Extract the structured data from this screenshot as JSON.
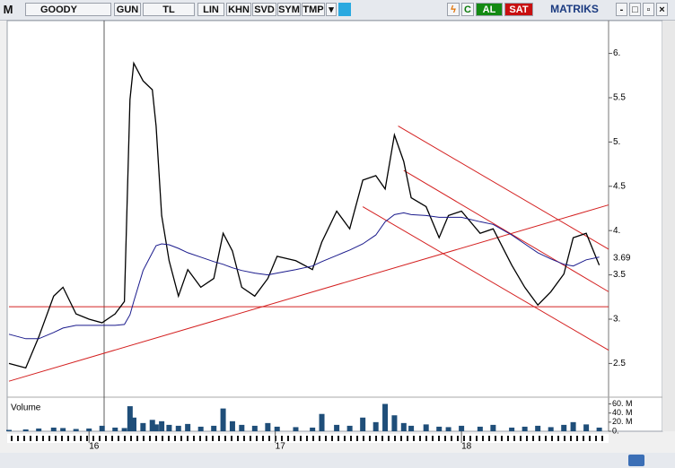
{
  "toolbar": {
    "logo": "M",
    "symbol": "GOODY",
    "buttons": [
      "GUN",
      "TL",
      "LIN",
      "KHN",
      "SVD",
      "SYM",
      "TMP"
    ],
    "c": "C",
    "buy": "AL",
    "sell": "SAT",
    "brand": "MATRIKS"
  },
  "chart_data": [
    {
      "type": "line",
      "x": [
        2015.57,
        2015.66,
        2015.73,
        2015.81,
        2015.86,
        2015.93,
        2016.0,
        2016.07,
        2016.14,
        2016.19,
        2016.22,
        2016.24,
        2016.29,
        2016.34,
        2016.36,
        2016.39,
        2016.43,
        2016.48,
        2016.53,
        2016.6,
        2016.67,
        2016.72,
        2016.77,
        2016.82,
        2016.89,
        2016.96,
        2017.01,
        2017.11,
        2017.2,
        2017.25,
        2017.33,
        2017.4,
        2017.47,
        2017.54,
        2017.59,
        2017.64,
        2017.69,
        2017.73,
        2017.81,
        2017.88,
        2017.93,
        2018.0,
        2018.1,
        2018.17,
        2018.27,
        2018.34,
        2018.41,
        2018.48,
        2018.55,
        2018.6,
        2018.67,
        2018.74
      ],
      "series": [
        {
          "color": "#000000",
          "values": [
            2.5,
            2.45,
            2.8,
            3.26,
            3.36,
            3.06,
            3.0,
            2.96,
            3.06,
            3.2,
            5.48,
            5.89,
            5.69,
            5.59,
            5.18,
            4.17,
            3.66,
            3.26,
            3.56,
            3.36,
            3.46,
            3.97,
            3.77,
            3.36,
            3.26,
            3.46,
            3.71,
            3.66,
            3.56,
            3.87,
            4.22,
            4.02,
            4.57,
            4.62,
            4.47,
            5.08,
            4.78,
            4.37,
            4.27,
            3.92,
            4.17,
            4.22,
            3.97,
            4.02,
            3.61,
            3.36,
            3.16,
            3.31,
            3.51,
            3.92,
            3.97,
            3.61
          ]
        },
        {
          "color": "#1a1a8c",
          "values": [
            2.83,
            2.78,
            2.78,
            2.85,
            2.9,
            2.93,
            2.93,
            2.93,
            2.93,
            2.94,
            3.05,
            3.2,
            3.55,
            3.75,
            3.83,
            3.85,
            3.84,
            3.8,
            3.75,
            3.7,
            3.65,
            3.62,
            3.58,
            3.55,
            3.52,
            3.5,
            3.52,
            3.56,
            3.6,
            3.65,
            3.72,
            3.78,
            3.85,
            3.95,
            4.1,
            4.18,
            4.2,
            4.18,
            4.17,
            4.15,
            4.15,
            4.15,
            4.1,
            4.07,
            3.95,
            3.85,
            3.75,
            3.68,
            3.62,
            3.6,
            3.67,
            3.7
          ]
        }
      ],
      "trendline_color": "#d42020",
      "trendlines": [
        {
          "x": [
            2015.57,
            2018.79
          ],
          "y": [
            3.14,
            3.14
          ]
        },
        {
          "x": [
            2015.57,
            2018.79
          ],
          "y": [
            2.3,
            4.29
          ]
        },
        {
          "x": [
            2017.66,
            2018.79
          ],
          "y": [
            5.18,
            3.79
          ]
        },
        {
          "x": [
            2017.69,
            2018.79
          ],
          "y": [
            4.68,
            3.31
          ]
        },
        {
          "x": [
            2017.47,
            2018.79
          ],
          "y": [
            4.27,
            2.65
          ]
        }
      ],
      "last_price": 3.69,
      "xlim": [
        2015.57,
        2018.79
      ],
      "xticks": [
        {
          "value": 2016,
          "label": "16"
        },
        {
          "value": 2017,
          "label": "17"
        },
        {
          "value": 2018,
          "label": "18"
        }
      ],
      "ylim": [
        2.15,
        6.35
      ],
      "yticks": [
        2.5,
        {
          "value": 3,
          "label": "3."
        },
        3.5,
        {
          "value": 4,
          "label": "4."
        },
        4.5,
        {
          "value": 5,
          "label": "5."
        },
        5.5,
        {
          "value": 6,
          "label": "6."
        }
      ]
    },
    {
      "type": "bar",
      "title": "Volume",
      "color": "#1f4e79",
      "x": [
        2015.57,
        2015.66,
        2015.73,
        2015.81,
        2015.86,
        2015.93,
        2016.0,
        2016.07,
        2016.14,
        2016.19,
        2016.22,
        2016.24,
        2016.29,
        2016.34,
        2016.36,
        2016.39,
        2016.43,
        2016.48,
        2016.53,
        2016.6,
        2016.67,
        2016.72,
        2016.77,
        2016.82,
        2016.89,
        2016.96,
        2017.01,
        2017.11,
        2017.2,
        2017.25,
        2017.33,
        2017.4,
        2017.47,
        2017.54,
        2017.59,
        2017.64,
        2017.69,
        2017.73,
        2017.81,
        2017.88,
        2017.93,
        2018.0,
        2018.1,
        2018.17,
        2018.27,
        2018.34,
        2018.41,
        2018.48,
        2018.55,
        2018.6,
        2018.67,
        2018.74
      ],
      "values": [
        3,
        4,
        6,
        8,
        7,
        5,
        6,
        12,
        8,
        7,
        55,
        30,
        18,
        25,
        15,
        22,
        14,
        12,
        16,
        10,
        12,
        50,
        22,
        14,
        12,
        18,
        10,
        9,
        8,
        38,
        14,
        12,
        30,
        20,
        60,
        35,
        18,
        12,
        15,
        10,
        9,
        12,
        10,
        14,
        8,
        10,
        12,
        9,
        14,
        20,
        15,
        8
      ],
      "ylim": [
        0,
        65
      ],
      "yticks": [
        {
          "value": 0,
          "label": "0."
        },
        {
          "value": 20,
          "label": "20. M"
        },
        {
          "value": 40,
          "label": "40. M"
        },
        {
          "value": 60,
          "label": "60. M"
        }
      ]
    }
  ]
}
